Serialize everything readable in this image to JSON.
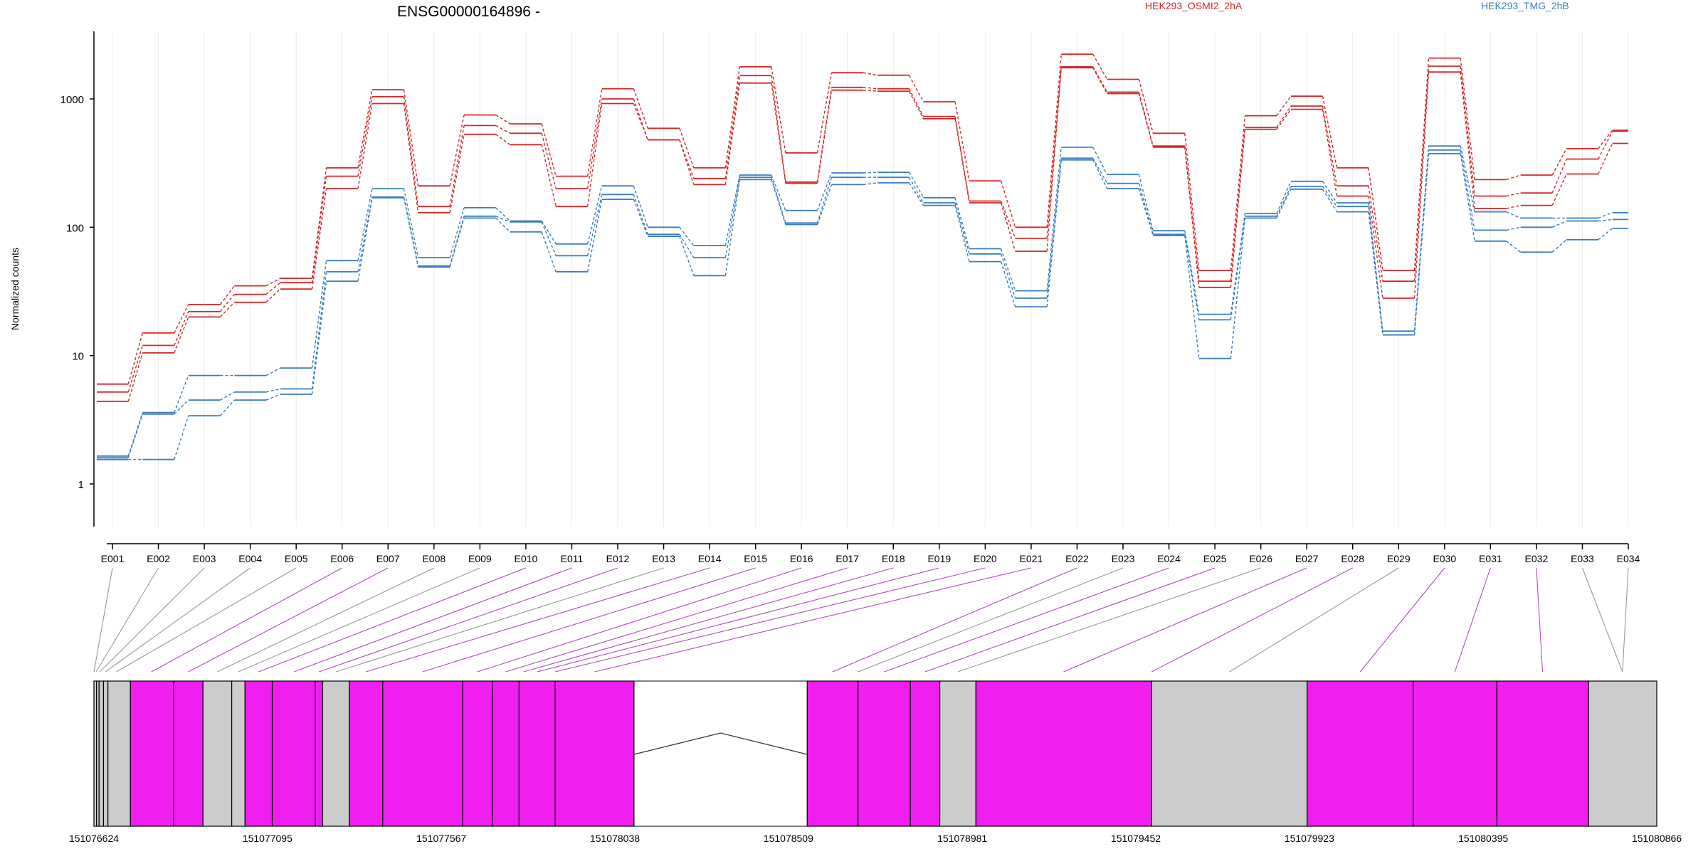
{
  "chart_data": {
    "type": "line",
    "title": "ENSG00000164896 -",
    "ylabel": "Normalized counts",
    "xlabel": "",
    "yscale": "log",
    "ylim": [
      0.4,
      3000
    ],
    "yticks": [
      1,
      10,
      100,
      1000
    ],
    "ytick_labels": [
      "1",
      "10",
      "100",
      "1000"
    ],
    "grid": "vertical",
    "legend_placement": "top-right",
    "categories": [
      "E001",
      "E002",
      "E003",
      "E004",
      "E005",
      "E006",
      "E007",
      "E008",
      "E009",
      "E010",
      "E011",
      "E012",
      "E013",
      "E014",
      "E015",
      "E016",
      "E017",
      "E018",
      "E019",
      "E020",
      "E021",
      "E022",
      "E023",
      "E024",
      "E025",
      "E026",
      "E027",
      "E028",
      "E029",
      "E030",
      "E031",
      "E032",
      "E033",
      "E034"
    ],
    "groups": [
      {
        "name": "HEK293_OSMI2_2hA",
        "color": "#d62728",
        "series": [
          {
            "values": [
              6.0,
              15.0,
              25.0,
              35.0,
              40.0,
              290,
              1180,
              210,
              750,
              640,
              250,
              1200,
              590,
              290,
              1780,
              380,
              1600,
              1530,
              950,
              230,
              100,
              2230,
              1420,
              540,
              46,
              740,
              1050,
              290,
              46,
              2080,
              235,
              255,
              410,
              570
            ]
          },
          {
            "values": [
              5.2,
              12.0,
              22.0,
              30.0,
              37.0,
              250,
              1040,
              145,
              620,
              540,
              200,
              1000,
              480,
              240,
              1520,
              225,
              1230,
              1200,
              730,
              160,
              82,
              1780,
              1130,
              430,
              38,
              600,
              880,
              210,
              38,
              1800,
              175,
              185,
              340,
              560
            ]
          },
          {
            "values": [
              4.4,
              10.5,
              20.0,
              26.0,
              33.0,
              200,
              920,
              130,
              530,
              440,
              145,
              920,
              480,
              215,
              1330,
              220,
              1170,
              1150,
              700,
              155,
              65,
              1750,
              1100,
              420,
              34,
              580,
              830,
              175,
              28,
              1620,
              140,
              148,
              260,
              450
            ]
          }
        ]
      },
      {
        "name": "HEK293_TMG_2hB",
        "color": "#3a7dbf",
        "series": [
          {
            "values": [
              1.65,
              3.6,
              7.0,
              7.0,
              8.0,
              55,
              200,
              58,
              142,
              112,
              74,
              210,
              100,
              72,
              255,
              135,
              265,
              268,
              170,
              68,
              32,
              420,
              258,
              94,
              21,
              128,
              228,
              155,
              15.5,
              430,
              132,
              118,
              118,
              130
            ]
          },
          {
            "values": [
              1.6,
              3.5,
              4.5,
              5.2,
              5.5,
              45,
              172,
              50,
              122,
              110,
              60,
              180,
              88,
              58,
              245,
              108,
              245,
              245,
              155,
              62,
              28,
              345,
              220,
              88,
              19,
              122,
              208,
              145,
              14.5,
              400,
              95,
              100,
              112,
              115
            ]
          },
          {
            "values": [
              1.55,
              1.55,
              3.4,
              4.5,
              5.0,
              38,
              170,
              49,
              118,
              92,
              45,
              165,
              85,
              42,
              235,
              105,
              215,
              222,
              148,
              54,
              24,
              335,
              200,
              86,
              9.5,
              118,
              198,
              132,
              14.5,
              375,
              78,
              64,
              80,
              98
            ]
          }
        ]
      }
    ],
    "gene_model": {
      "coordinate_labels": [
        "151076624",
        "151077095",
        "151077567",
        "151078038",
        "151078509",
        "151078981",
        "151079452",
        "151079923",
        "151080395",
        "151080866"
      ],
      "coordinate_values": [
        151076624,
        151077095,
        151077567,
        151078038,
        151078509,
        151078981,
        151079452,
        151079923,
        151080395,
        151080866
      ],
      "highlight_color": "#f01eee",
      "neutral_color": "#cccccc",
      "connector_color_default": "#999999",
      "blocks": [
        {
          "start": 151076624,
          "end": 151076631,
          "type": "neutral"
        },
        {
          "start": 151076631,
          "end": 151076638,
          "type": "neutral"
        },
        {
          "start": 151076638,
          "end": 151076650,
          "type": "neutral"
        },
        {
          "start": 151076650,
          "end": 151076662,
          "type": "neutral"
        },
        {
          "start": 151076662,
          "end": 151076723,
          "type": "neutral"
        },
        {
          "start": 151076723,
          "end": 151076840,
          "type": "highlight"
        },
        {
          "start": 151076840,
          "end": 151076920,
          "type": "highlight"
        },
        {
          "start": 151076920,
          "end": 151076998,
          "type": "neutral"
        },
        {
          "start": 151076998,
          "end": 151077034,
          "type": "neutral"
        },
        {
          "start": 151077034,
          "end": 151077108,
          "type": "highlight"
        },
        {
          "start": 151077108,
          "end": 151077225,
          "type": "highlight"
        },
        {
          "start": 151077225,
          "end": 151077245,
          "type": "highlight"
        },
        {
          "start": 151077245,
          "end": 151077317,
          "type": "neutral"
        },
        {
          "start": 151077317,
          "end": 151077408,
          "type": "highlight"
        },
        {
          "start": 151077408,
          "end": 151077625,
          "type": "highlight"
        },
        {
          "start": 151077625,
          "end": 151077705,
          "type": "highlight"
        },
        {
          "start": 151077705,
          "end": 151077778,
          "type": "highlight"
        },
        {
          "start": 151077778,
          "end": 151077876,
          "type": "highlight"
        },
        {
          "start": 151077876,
          "end": 151078090,
          "type": "highlight"
        },
        {
          "start": 151078560,
          "end": 151078698,
          "type": "highlight"
        },
        {
          "start": 151078698,
          "end": 151078840,
          "type": "highlight"
        },
        {
          "start": 151078840,
          "end": 151078920,
          "type": "highlight"
        },
        {
          "start": 151078920,
          "end": 151079018,
          "type": "neutral"
        },
        {
          "start": 151079018,
          "end": 151079495,
          "type": "highlight"
        },
        {
          "start": 151079495,
          "end": 151079917,
          "type": "neutral"
        },
        {
          "start": 151079917,
          "end": 151080205,
          "type": "highlight"
        },
        {
          "start": 151080205,
          "end": 151080432,
          "type": "highlight"
        },
        {
          "start": 151080432,
          "end": 151080681,
          "type": "highlight"
        },
        {
          "start": 151080681,
          "end": 151080866,
          "type": "neutral"
        }
      ],
      "intron": {
        "start": 151078090,
        "end": 151078560,
        "peak": 151078325
      },
      "connectors": [
        {
          "exon": "E001",
          "pos": 151076624,
          "type": "neutral"
        },
        {
          "exon": "E002",
          "pos": 151076630,
          "type": "neutral"
        },
        {
          "exon": "E003",
          "pos": 151076640,
          "type": "neutral"
        },
        {
          "exon": "E004",
          "pos": 151076655,
          "type": "neutral"
        },
        {
          "exon": "E005",
          "pos": 151076685,
          "type": "neutral"
        },
        {
          "exon": "E006",
          "pos": 151076780,
          "type": "highlight"
        },
        {
          "exon": "E007",
          "pos": 151076880,
          "type": "highlight"
        },
        {
          "exon": "E008",
          "pos": 151076959,
          "type": "neutral"
        },
        {
          "exon": "E009",
          "pos": 151077016,
          "type": "neutral"
        },
        {
          "exon": "E010",
          "pos": 151077071,
          "type": "highlight"
        },
        {
          "exon": "E011",
          "pos": 151077167,
          "type": "highlight"
        },
        {
          "exon": "E012",
          "pos": 151077235,
          "type": "highlight"
        },
        {
          "exon": "E013",
          "pos": 151077281,
          "type": "neutral"
        },
        {
          "exon": "E014",
          "pos": 151077362,
          "type": "highlight"
        },
        {
          "exon": "E015",
          "pos": 151077516,
          "type": "highlight"
        },
        {
          "exon": "E016",
          "pos": 151077665,
          "type": "highlight"
        },
        {
          "exon": "E017",
          "pos": 151077741,
          "type": "highlight"
        },
        {
          "exon": "E018",
          "pos": 151077790,
          "type": "highlight"
        },
        {
          "exon": "E019",
          "pos": 151077827,
          "type": "highlight"
        },
        {
          "exon": "E020",
          "pos": 151077876,
          "type": "highlight"
        },
        {
          "exon": "E021",
          "pos": 151077983,
          "type": "highlight"
        },
        {
          "exon": "E022",
          "pos": 151078629,
          "type": "highlight"
        },
        {
          "exon": "E023",
          "pos": 151078698,
          "type": "neutral"
        },
        {
          "exon": "E024",
          "pos": 151078769,
          "type": "highlight"
        },
        {
          "exon": "E025",
          "pos": 151078880,
          "type": "highlight"
        },
        {
          "exon": "E026",
          "pos": 151078969,
          "type": "neutral"
        },
        {
          "exon": "E027",
          "pos": 151079256,
          "type": "highlight"
        },
        {
          "exon": "E028",
          "pos": 151079495,
          "type": "highlight"
        },
        {
          "exon": "E029",
          "pos": 151079706,
          "type": "neutral"
        },
        {
          "exon": "E030",
          "pos": 151080061,
          "type": "highlight"
        },
        {
          "exon": "E031",
          "pos": 151080318,
          "type": "highlight"
        },
        {
          "exon": "E032",
          "pos": 151080556,
          "type": "highlight"
        },
        {
          "exon": "E033",
          "pos": 151080773,
          "type": "neutral"
        },
        {
          "exon": "E034",
          "pos": 151080773,
          "type": "neutral"
        }
      ]
    }
  }
}
